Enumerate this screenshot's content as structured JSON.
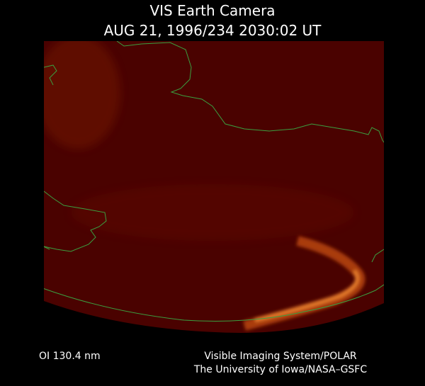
{
  "header": {
    "title": "VIS Earth Camera",
    "subtitle": "AUG 21, 1996/234 2030:02 UT"
  },
  "footer": {
    "wavelength": "OI  130.4 nm",
    "instrument": "Visible Imaging System/POLAR",
    "institution": "The University of Iowa/NASA–GSFC"
  }
}
